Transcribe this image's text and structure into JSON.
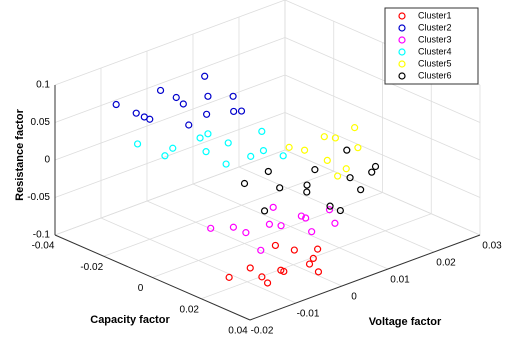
{
  "chart_data": {
    "type": "scatter3d",
    "xlabel": "Capacity factor",
    "ylabel": "Voltage factor",
    "zlabel": "Resistance factor",
    "xlim": [
      -0.04,
      0.04
    ],
    "xticks": [
      -0.04,
      -0.02,
      0,
      0.02,
      0.04
    ],
    "ylim": [
      -0.02,
      0.03
    ],
    "yticks": [
      -0.02,
      -0.01,
      0,
      0.01,
      0.02,
      0.03
    ],
    "zlim": [
      -0.1,
      0.1
    ],
    "zticks": [
      -0.1,
      -0.05,
      0,
      0.05,
      0.1
    ],
    "grid": true,
    "legend": "upper right",
    "series": [
      {
        "name": "Cluster1",
        "color": "#ff0000",
        "x": [
          0.025,
          0.03,
          0.035,
          0.028,
          0.022,
          0.032,
          0.038,
          0.026,
          0.034,
          0.03,
          0.024,
          0.036
        ],
        "y": [
          -0.012,
          -0.008,
          -0.01,
          -0.004,
          -0.015,
          -0.002,
          -0.006,
          -0.01,
          -0.013,
          0.0,
          -0.006,
          -0.003
        ],
        "z": [
          -0.07,
          -0.075,
          -0.065,
          -0.06,
          -0.08,
          -0.07,
          -0.06,
          -0.085,
          -0.075,
          -0.065,
          -0.055,
          -0.08
        ]
      },
      {
        "name": "Cluster2",
        "color": "#0000cc",
        "x": [
          -0.03,
          -0.025,
          -0.02,
          -0.015,
          -0.01,
          -0.005,
          -0.028,
          -0.018,
          -0.012,
          -0.022,
          -0.008,
          -0.016,
          -0.026,
          -0.004
        ],
        "y": [
          -0.012,
          -0.005,
          -0.01,
          0.0,
          -0.008,
          0.002,
          0.0,
          -0.014,
          0.004,
          0.003,
          -0.004,
          0.006,
          -0.008,
          -0.01
        ],
        "z": [
          0.07,
          0.08,
          0.06,
          0.075,
          0.09,
          0.065,
          0.055,
          0.08,
          0.05,
          0.085,
          0.07,
          0.06,
          0.05,
          0.075
        ]
      },
      {
        "name": "Cluster3",
        "color": "#ff00ff",
        "x": [
          0.01,
          0.015,
          0.02,
          0.005,
          0.012,
          0.018,
          0.008,
          0.022,
          0.014,
          0.003,
          0.016,
          0.01
        ],
        "y": [
          -0.005,
          0.0,
          0.004,
          -0.01,
          0.006,
          -0.006,
          0.002,
          0.008,
          -0.002,
          -0.004,
          0.01,
          0.008
        ],
        "z": [
          -0.06,
          -0.055,
          -0.065,
          -0.05,
          -0.06,
          -0.07,
          -0.045,
          -0.06,
          -0.05,
          -0.065,
          -0.055,
          -0.07
        ]
      },
      {
        "name": "Cluster4",
        "color": "#00ffff",
        "x": [
          -0.025,
          -0.02,
          -0.015,
          -0.01,
          -0.005,
          0.0,
          -0.018,
          -0.008,
          -0.022,
          -0.012,
          0.004,
          -0.003
        ],
        "y": [
          -0.01,
          -0.005,
          0.0,
          -0.012,
          0.004,
          -0.004,
          0.006,
          0.008,
          0.002,
          -0.002,
          0.002,
          0.01
        ],
        "z": [
          0.02,
          0.01,
          0.025,
          0.03,
          0.0,
          0.015,
          -0.005,
          0.02,
          0.005,
          0.01,
          0.025,
          -0.01
        ]
      },
      {
        "name": "Cluster5",
        "color": "#ffff00",
        "x": [
          -0.01,
          -0.005,
          0.0,
          0.005,
          -0.008,
          0.002,
          0.008,
          -0.002,
          0.004
        ],
        "y": [
          0.015,
          0.02,
          0.018,
          0.022,
          0.024,
          0.012,
          0.016,
          0.025,
          0.02
        ],
        "z": [
          -0.02,
          -0.01,
          -0.03,
          -0.015,
          -0.025,
          0.0,
          -0.035,
          -0.005,
          -0.04
        ]
      },
      {
        "name": "Cluster6",
        "color": "#000000",
        "x": [
          0.0,
          0.005,
          0.01,
          0.015,
          0.02,
          0.025,
          0.008,
          0.018,
          0.012,
          0.003,
          0.022,
          0.028,
          0.006,
          0.016
        ],
        "y": [
          0.0,
          0.005,
          0.01,
          0.015,
          0.008,
          0.012,
          0.018,
          0.004,
          -0.002,
          0.012,
          0.016,
          0.006,
          0.002,
          0.02
        ],
        "z": [
          -0.02,
          -0.03,
          -0.01,
          -0.025,
          -0.04,
          -0.02,
          -0.005,
          -0.015,
          -0.035,
          -0.045,
          -0.01,
          -0.03,
          0.0,
          -0.02
        ]
      }
    ]
  }
}
